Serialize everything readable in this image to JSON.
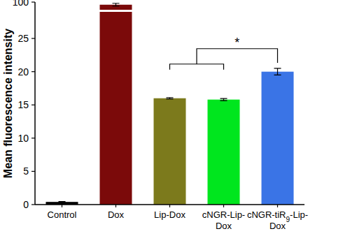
{
  "chart_data": {
    "type": "bar",
    "y_label": "Mean fluorescence intensity",
    "categories": [
      "Control",
      "Dox",
      "Lip-Dox",
      "cNGR-Lip-Dox",
      "cNGR-tiR9-Lip-Dox"
    ],
    "values": [
      0.4,
      98.5,
      16.0,
      15.8,
      20.0
    ],
    "errors": [
      0.05,
      0.8,
      0.1,
      0.15,
      0.5
    ],
    "colors": [
      "#000000",
      "#7b0a0a",
      "#7c7a1c",
      "#00e61e",
      "#3a74e6"
    ],
    "ylim": [
      0,
      100
    ],
    "y_break": [
      29,
      96
    ],
    "yticks": [
      0,
      5,
      10,
      15,
      20,
      25,
      100
    ],
    "grid": false,
    "significance": [
      {
        "groups": [
          2,
          3
        ],
        "vs": 4,
        "label": "*"
      }
    ]
  }
}
